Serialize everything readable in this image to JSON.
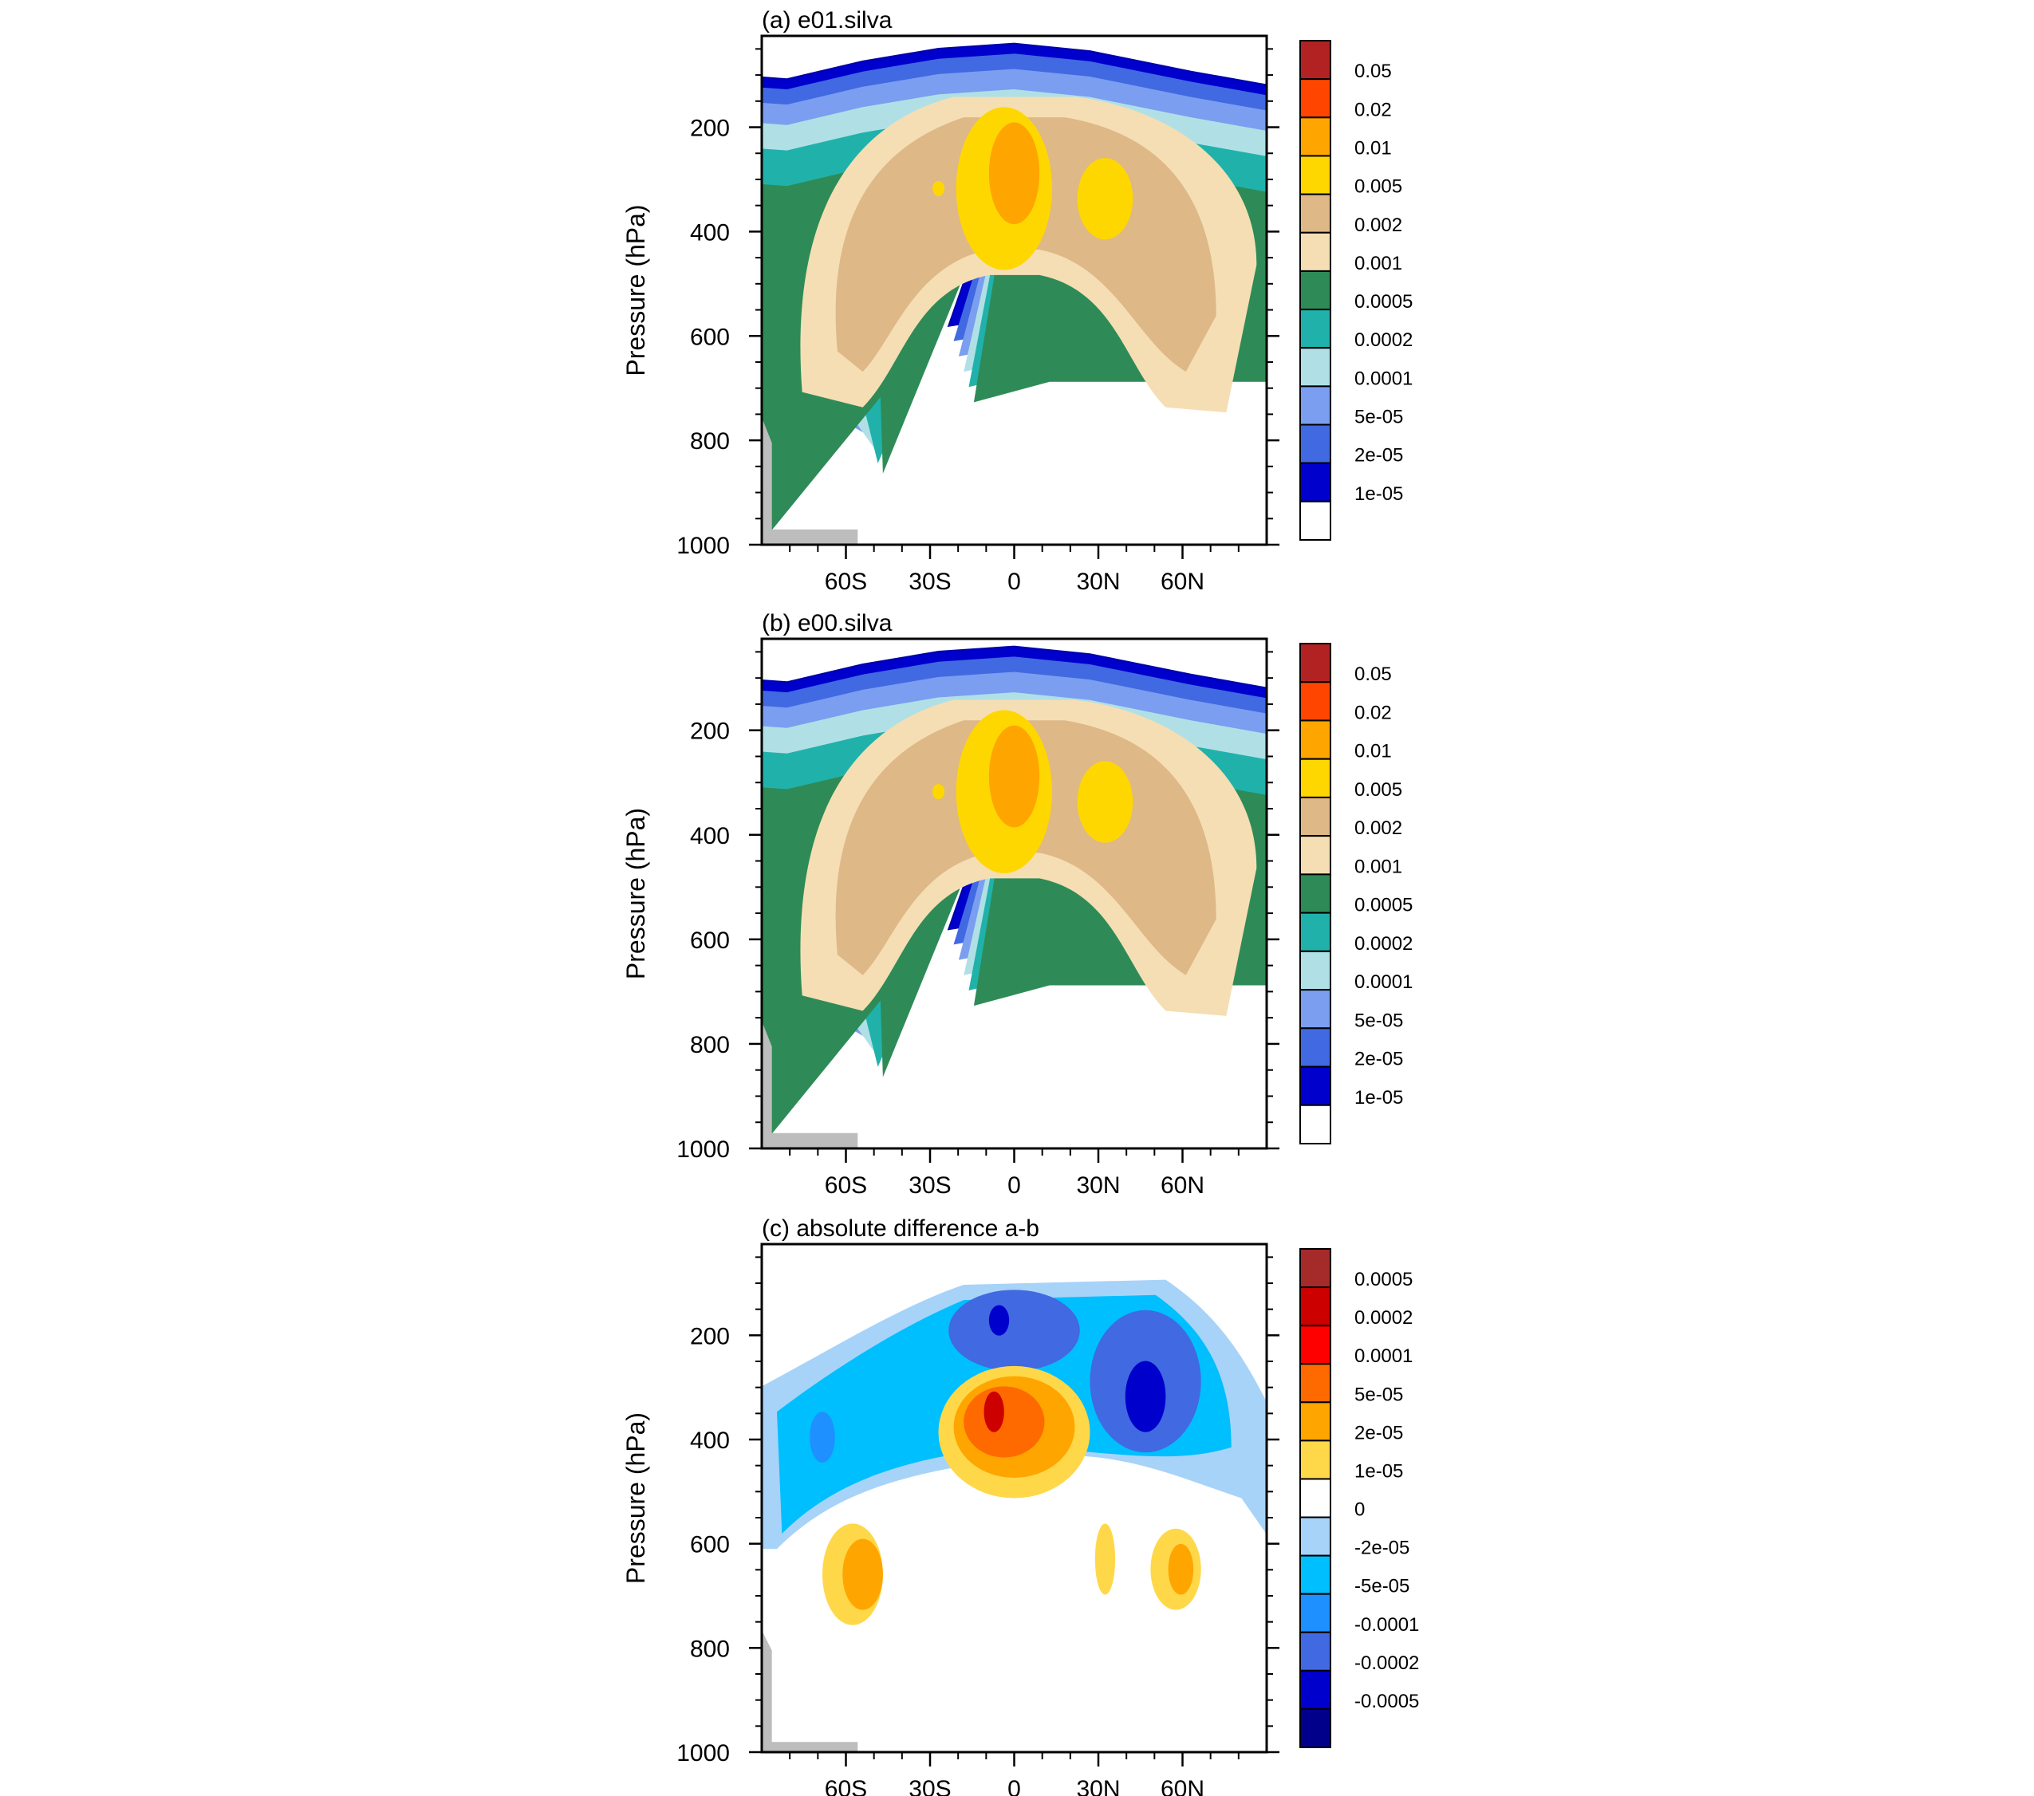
{
  "chart_data": [
    {
      "type": "heatmap",
      "title": "(a) e01.silva",
      "ylabel": "Pressure (hPa)",
      "xlabel": "",
      "x_ticks": [
        "60S",
        "30S",
        "0",
        "30N",
        "60N"
      ],
      "x_tick_values": [
        -60,
        -30,
        0,
        30,
        60
      ],
      "xlim": [
        -90,
        90
      ],
      "y_ticks": [
        "200",
        "400",
        "600",
        "800",
        "1000"
      ],
      "y_tick_values": [
        200,
        400,
        600,
        800,
        1000
      ],
      "ylim": [
        1000,
        25
      ],
      "colorbar_labels": [
        "0.05",
        "0.02",
        "0.01",
        "0.005",
        "0.002",
        "0.001",
        "0.0005",
        "0.0002",
        "0.0001",
        "5e-05",
        "2e-05",
        "1e-05"
      ],
      "colorbar_colors": [
        "#B22222",
        "#FF4500",
        "#FFA500",
        "#FFD700",
        "#DEB887",
        "#F5DEB3",
        "#2E8B57",
        "#20B2AA",
        "#B0E0E6",
        "#7B9EF0",
        "#4169E1",
        "#0000CD",
        "#FFFFFF"
      ]
    },
    {
      "type": "heatmap",
      "title": "(b) e00.silva",
      "ylabel": "Pressure (hPa)",
      "xlabel": "",
      "x_ticks": [
        "60S",
        "30S",
        "0",
        "30N",
        "60N"
      ],
      "x_tick_values": [
        -60,
        -30,
        0,
        30,
        60
      ],
      "xlim": [
        -90,
        90
      ],
      "y_ticks": [
        "200",
        "400",
        "600",
        "800",
        "1000"
      ],
      "y_tick_values": [
        200,
        400,
        600,
        800,
        1000
      ],
      "ylim": [
        1000,
        25
      ],
      "colorbar_labels": [
        "0.05",
        "0.02",
        "0.01",
        "0.005",
        "0.002",
        "0.001",
        "0.0005",
        "0.0002",
        "0.0001",
        "5e-05",
        "2e-05",
        "1e-05"
      ],
      "colorbar_colors": [
        "#B22222",
        "#FF4500",
        "#FFA500",
        "#FFD700",
        "#DEB887",
        "#F5DEB3",
        "#2E8B57",
        "#20B2AA",
        "#B0E0E6",
        "#7B9EF0",
        "#4169E1",
        "#0000CD",
        "#FFFFFF"
      ]
    },
    {
      "type": "heatmap",
      "title": "(c) absolute difference a-b",
      "ylabel": "Pressure (hPa)",
      "xlabel": "",
      "x_ticks": [
        "60S",
        "30S",
        "0",
        "30N",
        "60N"
      ],
      "x_tick_values": [
        -60,
        -30,
        0,
        30,
        60
      ],
      "xlim": [
        -90,
        90
      ],
      "y_ticks": [
        "200",
        "400",
        "600",
        "800",
        "1000"
      ],
      "y_tick_values": [
        200,
        400,
        600,
        800,
        1000
      ],
      "ylim": [
        1000,
        25
      ],
      "colorbar_labels": [
        "0.0005",
        "0.0002",
        "0.0001",
        "5e-05",
        "2e-05",
        "1e-05",
        "0",
        "-2e-05",
        "-5e-05",
        "-0.0001",
        "-0.0002",
        "-0.0005"
      ],
      "colorbar_colors": [
        "#A52A2A",
        "#CD0000",
        "#FF0000",
        "#FF6A00",
        "#FFA500",
        "#FFD84A",
        "#FFFFFF",
        "#A8D3F8",
        "#00BFFF",
        "#1E90FF",
        "#4169E1",
        "#0000CD",
        "#00008B"
      ]
    }
  ]
}
